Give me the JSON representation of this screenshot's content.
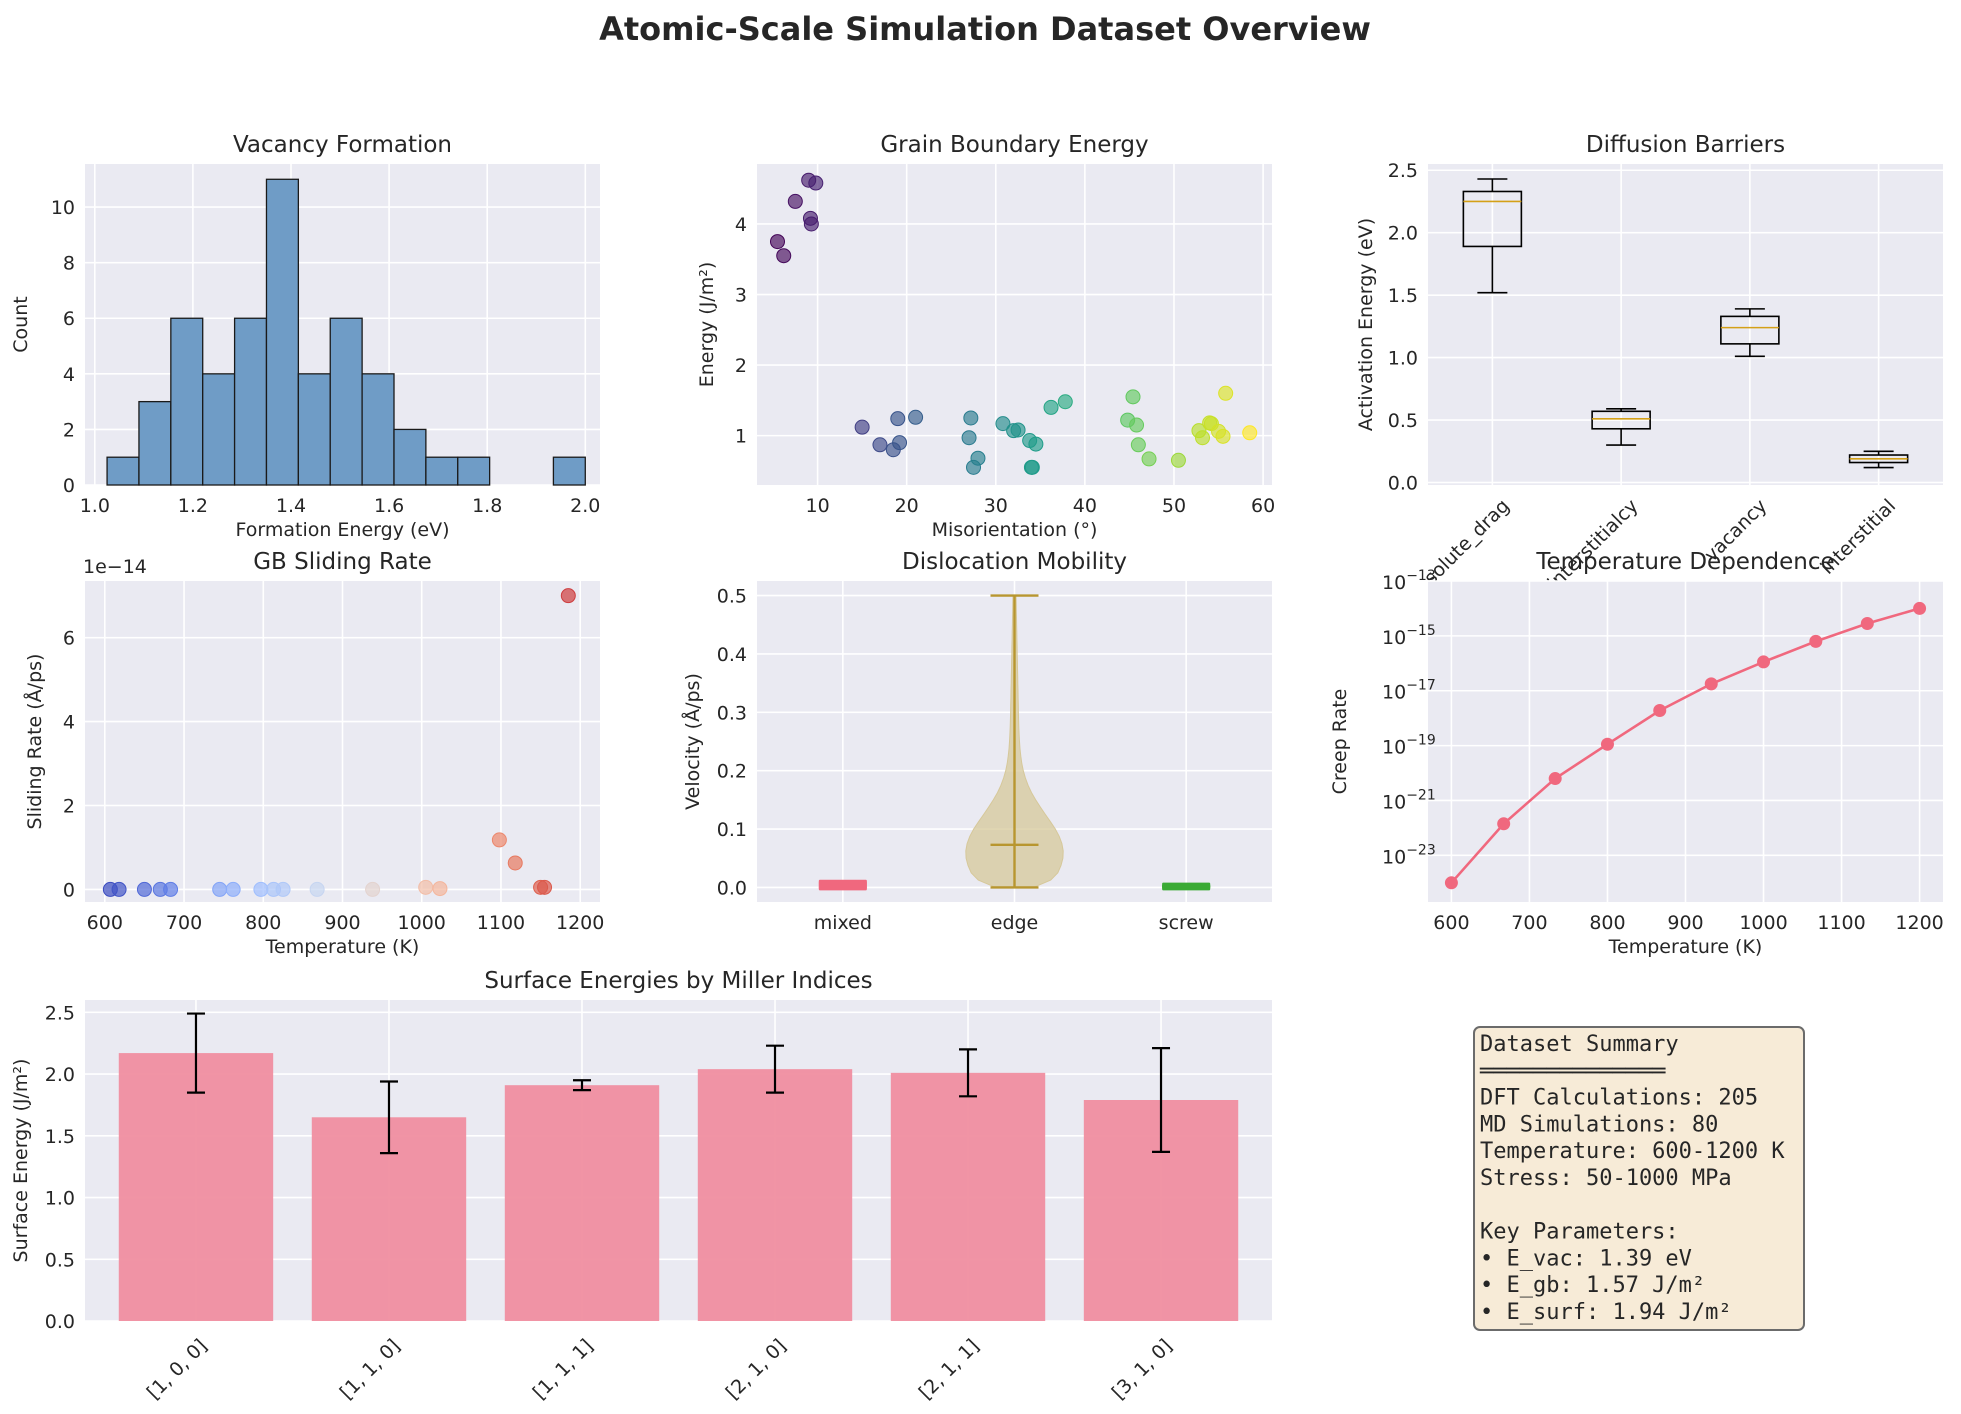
{
  "suptitle": "Atomic-Scale Simulation Dataset Overview",
  "colors": {
    "panel_bg": "#eaeaf2",
    "grid": "#ffffff",
    "hist_fill": "#6f9cc6",
    "bar_fill": "#f08ea0",
    "creep_line": "#f0687e",
    "box_median": "#d4a017",
    "violin_body": "#d6c89a",
    "violin_lines": "#b8962f",
    "summary_bg": "#f7ebd7",
    "summary_border": "#6b6b6b"
  },
  "chart_data": [
    {
      "id": "vacancy",
      "type": "bar",
      "title": "Vacancy Formation",
      "xlabel": "Formation Energy (eV)",
      "ylabel": "Count",
      "xlim": [
        0.98,
        2.03
      ],
      "ylim": [
        0,
        11.55
      ],
      "bin_edges": [
        1.025,
        1.09,
        1.155,
        1.22,
        1.285,
        1.35,
        1.415,
        1.48,
        1.545,
        1.61,
        1.675,
        1.74,
        1.805,
        1.87,
        1.935,
        2.0
      ],
      "counts": [
        1,
        3,
        6,
        4,
        6,
        11,
        4,
        6,
        4,
        2,
        1,
        1,
        0,
        0,
        1
      ],
      "xticks": [
        1.0,
        1.2,
        1.4,
        1.6,
        1.8,
        2.0
      ],
      "xtick_labels": [
        "1.0",
        "1.2",
        "1.4",
        "1.6",
        "1.8",
        "2.0"
      ],
      "yticks": [
        0,
        2,
        4,
        6,
        8,
        10
      ],
      "ytick_labels": [
        "0",
        "2",
        "4",
        "6",
        "8",
        "10"
      ]
    },
    {
      "id": "grain",
      "type": "scatter",
      "title": "Grain Boundary Energy",
      "xlabel": "Misorientation (°)",
      "ylabel": "Energy (J/m²)",
      "xlim": [
        3.2,
        61.0
      ],
      "ylim": [
        0.3,
        4.85
      ],
      "x": [
        5.5,
        6.2,
        7.5,
        9.0,
        9.2,
        9.3,
        9.8,
        15.0,
        17.0,
        18.5,
        19.0,
        19.2,
        21.0,
        27.0,
        27.2,
        27.5,
        28.0,
        30.8,
        32.0,
        32.5,
        33.8,
        34.0,
        34.1,
        34.5,
        36.2,
        37.8,
        44.8,
        45.4,
        45.8,
        46.0,
        47.2,
        50.5,
        52.8,
        53.2,
        54.0,
        54.2,
        55.0,
        55.5,
        55.8,
        58.5
      ],
      "y": [
        3.75,
        3.55,
        4.32,
        4.62,
        4.08,
        4.0,
        4.58,
        1.12,
        0.87,
        0.8,
        1.24,
        0.9,
        1.26,
        0.97,
        1.25,
        0.55,
        0.68,
        1.17,
        1.07,
        1.08,
        0.93,
        0.55,
        0.55,
        0.88,
        1.4,
        1.48,
        1.22,
        1.55,
        1.15,
        0.87,
        0.67,
        0.65,
        1.07,
        0.97,
        1.18,
        1.17,
        1.06,
        0.99,
        1.6,
        1.04
      ],
      "xticks": [
        10,
        20,
        30,
        40,
        50,
        60
      ],
      "xtick_labels": [
        "10",
        "20",
        "30",
        "40",
        "50",
        "60"
      ],
      "yticks": [
        1,
        2,
        3,
        4
      ],
      "ytick_labels": [
        "1",
        "2",
        "3",
        "4"
      ]
    },
    {
      "id": "diffusion",
      "type": "box",
      "title": "Diffusion Barriers",
      "ylabel": "Activation Energy (eV)",
      "ylim": [
        -0.02,
        2.55
      ],
      "categories": [
        "solute_drag",
        "interstitialcy",
        "vacancy",
        "interstitial"
      ],
      "boxes": [
        {
          "whislo": 1.52,
          "q1": 1.89,
          "med": 2.25,
          "q3": 2.33,
          "whishi": 2.43
        },
        {
          "whislo": 0.3,
          "q1": 0.43,
          "med": 0.51,
          "q3": 0.57,
          "whishi": 0.59
        },
        {
          "whislo": 1.01,
          "q1": 1.11,
          "med": 1.24,
          "q3": 1.33,
          "whishi": 1.39
        },
        {
          "whislo": 0.12,
          "q1": 0.16,
          "med": 0.19,
          "q3": 0.22,
          "whishi": 0.25
        }
      ],
      "yticks": [
        0.0,
        0.5,
        1.0,
        1.5,
        2.0,
        2.5
      ],
      "ytick_labels": [
        "0.0",
        "0.5",
        "1.0",
        "1.5",
        "2.0",
        "2.5"
      ]
    },
    {
      "id": "gbsliding",
      "type": "scatter",
      "title": "GB Sliding Rate",
      "xlabel": "Temperature (K)",
      "ylabel": "Sliding Rate (Å/ps)",
      "offset_text": "1e−14",
      "xlim": [
        575,
        1225
      ],
      "ylim": [
        -0.3,
        7.35
      ],
      "x": [
        607,
        618,
        650,
        670,
        683,
        745,
        762,
        797,
        813,
        825,
        868,
        938,
        1005,
        1023,
        1098,
        1118,
        1150,
        1155,
        1185
      ],
      "y": [
        0.0,
        0.0,
        0.0,
        0.0,
        0.0,
        0.0,
        0.0,
        0.0,
        0.0,
        0.0,
        0.0,
        0.0,
        0.05,
        0.02,
        1.18,
        0.63,
        0.05,
        0.05,
        7.0
      ],
      "color_norm": [
        0.0,
        0.02,
        0.07,
        0.1,
        0.12,
        0.22,
        0.25,
        0.3,
        0.33,
        0.35,
        0.42,
        0.53,
        0.64,
        0.67,
        0.79,
        0.82,
        0.87,
        0.88,
        0.92
      ],
      "xticks": [
        600,
        700,
        800,
        900,
        1000,
        1100,
        1200
      ],
      "xtick_labels": [
        "600",
        "700",
        "800",
        "900",
        "1000",
        "1100",
        "1200"
      ],
      "yticks": [
        0,
        2,
        4,
        6
      ],
      "ytick_labels": [
        "0",
        "2",
        "4",
        "6"
      ]
    },
    {
      "id": "dislocation",
      "type": "violin",
      "title": "Dislocation Mobility",
      "ylabel": "Velocity (Å/ps)",
      "ylim": [
        -0.025,
        0.525
      ],
      "categories": [
        "mixed",
        "edge",
        "screw"
      ],
      "series": [
        {
          "name": "mixed",
          "min": 0.0,
          "max": 0.008,
          "median": 0.004,
          "color": "#f0687e"
        },
        {
          "name": "edge",
          "min": 0.0,
          "max": 0.5,
          "median": 0.073,
          "color": "#b8962f"
        },
        {
          "name": "screw",
          "min": 0.0,
          "max": 0.003,
          "median": 0.0015,
          "color": "#3aaa35"
        }
      ],
      "yticks": [
        0.0,
        0.1,
        0.2,
        0.3,
        0.4,
        0.5
      ],
      "ytick_labels": [
        "0.0",
        "0.1",
        "0.2",
        "0.3",
        "0.4",
        "0.5"
      ]
    },
    {
      "id": "creep",
      "type": "line",
      "title": "Temperature Dependence",
      "xlabel": "Temperature (K)",
      "ylabel": "Creep Rate",
      "yscale": "log",
      "xlim": [
        570,
        1230
      ],
      "ylim_log10": [
        -24.7,
        -13.0
      ],
      "x": [
        600,
        667,
        733,
        800,
        867,
        933,
        1000,
        1067,
        1133,
        1200
      ],
      "y_log10": [
        -24.0,
        -21.85,
        -20.2,
        -18.95,
        -17.72,
        -16.75,
        -15.95,
        -15.2,
        -14.55,
        -14.0
      ],
      "xticks": [
        600,
        700,
        800,
        900,
        1000,
        1100,
        1200
      ],
      "xtick_labels": [
        "600",
        "700",
        "800",
        "900",
        "1000",
        "1100",
        "1200"
      ],
      "yticks_log10": [
        -23,
        -21,
        -19,
        -17,
        -15,
        -13
      ],
      "ytick_labels": [
        "10",
        "10",
        "10",
        "10",
        "10",
        "10"
      ],
      "ytick_exponents": [
        "−23",
        "−21",
        "−19",
        "−17",
        "−15",
        "−13"
      ]
    },
    {
      "id": "surface",
      "type": "bar",
      "title": "Surface Energies by Miller Indices",
      "ylabel": "Surface Energy (J/m²)",
      "ylim": [
        0,
        2.6
      ],
      "categories": [
        "[1, 0, 0]",
        "[1, 1, 0]",
        "[1, 1, 1]",
        "[2, 1, 0]",
        "[2, 1, 1]",
        "[3, 1, 0]"
      ],
      "values": [
        2.17,
        1.65,
        1.91,
        2.04,
        2.01,
        1.79
      ],
      "errors": [
        0.32,
        0.29,
        0.04,
        0.19,
        0.19,
        0.42
      ],
      "yticks": [
        0.0,
        0.5,
        1.0,
        1.5,
        2.0,
        2.5
      ],
      "ytick_labels": [
        "0.0",
        "0.5",
        "1.0",
        "1.5",
        "2.0",
        "2.5"
      ]
    }
  ],
  "summary": {
    "lines": [
      "Dataset Summary",
      "══════════════",
      "DFT Calculations: 205",
      "MD Simulations: 80",
      "Temperature: 600-1200 K",
      "Stress: 50-1000 MPa",
      "",
      "Key Parameters:",
      "• E_vac: 1.39 eV",
      "• E_gb: 1.57 J/m²",
      "• E_surf: 1.94 J/m²"
    ]
  }
}
